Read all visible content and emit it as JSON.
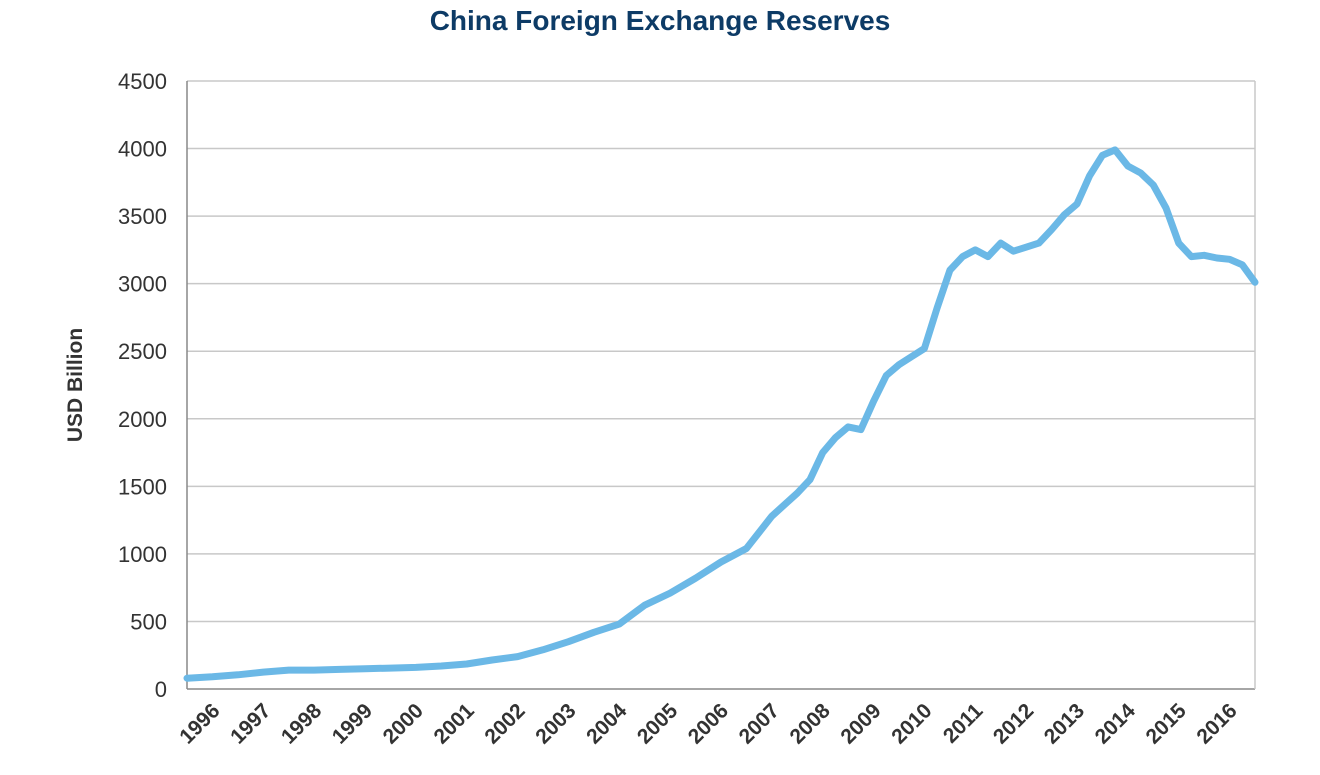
{
  "chart_data": {
    "type": "line",
    "title": "China Foreign Exchange Reserves",
    "xlabel": "",
    "ylabel": "USD Billion",
    "ylim": [
      0,
      4500
    ],
    "yticks": [
      0,
      500,
      1000,
      1500,
      2000,
      2500,
      3000,
      3500,
      4000,
      4500
    ],
    "xlim": [
      1996.0,
      2017.0
    ],
    "xtick_labels": [
      "1996",
      "1997",
      "1998",
      "1999",
      "2000",
      "2001",
      "2002",
      "2003",
      "2004",
      "2005",
      "2006",
      "2007",
      "2008",
      "2009",
      "2010",
      "2011",
      "2012",
      "2013",
      "2014",
      "2015",
      "2016"
    ],
    "grid": true,
    "colors": {
      "line": "#6bb8e6",
      "title": "#0d3b66",
      "grid": "#c8c8c8",
      "axis": "#888888"
    },
    "series": [
      {
        "x": [
          1996.0,
          1996.5,
          1997.0,
          1997.5,
          1998.0,
          1998.5,
          1999.0,
          1999.5,
          2000.0,
          2000.5,
          2001.0,
          2001.5,
          2002.0,
          2002.5,
          2003.0,
          2003.5,
          2004.0,
          2004.5,
          2005.0,
          2005.5,
          2006.0,
          2006.5,
          2007.0,
          2007.5,
          2008.0,
          2008.25,
          2008.5,
          2008.75,
          2009.0,
          2009.25,
          2009.5,
          2009.75,
          2010.0,
          2010.25,
          2010.5,
          2010.75,
          2011.0,
          2011.25,
          2011.5,
          2011.75,
          2012.0,
          2012.25,
          2012.5,
          2012.75,
          2013.0,
          2013.25,
          2013.5,
          2013.75,
          2014.0,
          2014.25,
          2014.5,
          2014.75,
          2015.0,
          2015.25,
          2015.5,
          2015.75,
          2016.0,
          2016.25,
          2016.5,
          2016.75,
          2017.0
        ],
        "values": [
          80,
          90,
          105,
          125,
          140,
          140,
          145,
          150,
          155,
          160,
          170,
          185,
          215,
          240,
          290,
          350,
          420,
          480,
          620,
          710,
          820,
          940,
          1040,
          1280,
          1450,
          1550,
          1750,
          1860,
          1940,
          1920,
          2130,
          2320,
          2400,
          2460,
          2520,
          2820,
          3100,
          3200,
          3250,
          3200,
          3300,
          3240,
          3270,
          3300,
          3400,
          3510,
          3590,
          3800,
          3950,
          3990,
          3870,
          3820,
          3730,
          3560,
          3300,
          3200,
          3210,
          3190,
          3180,
          3140,
          3010
        ]
      }
    ]
  }
}
